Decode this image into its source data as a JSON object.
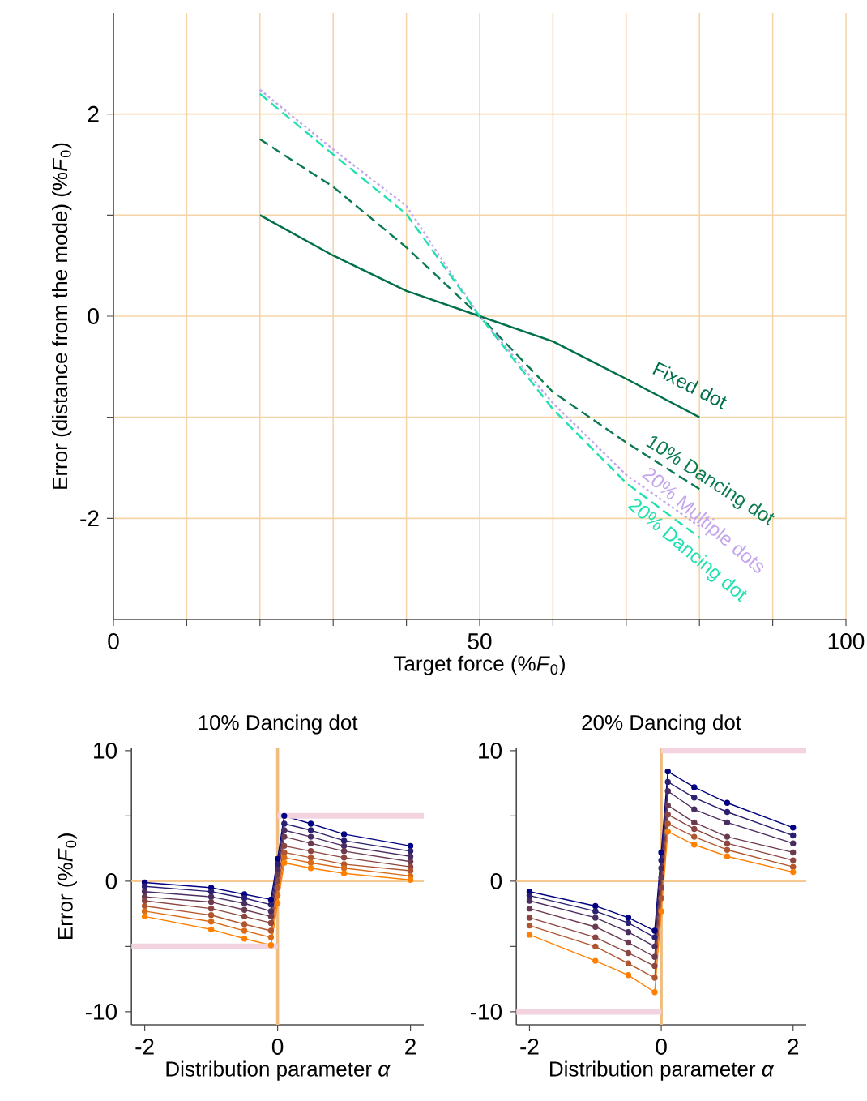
{
  "chart_data": [
    {
      "type": "line",
      "xlabel": "Target force (%*F*$_{0}$)",
      "ylabel": "Error (distance from the mode) (%*F*$_{0}$)",
      "x": [
        20,
        30,
        40,
        50,
        60,
        70,
        80
      ],
      "xlim": [
        0,
        100
      ],
      "ylim": [
        -3,
        3
      ],
      "xticks": [
        0,
        {
          "value": 10,
          "label": null
        },
        {
          "value": 20,
          "label": null
        },
        {
          "value": 30,
          "label": null
        },
        {
          "value": 40,
          "label": null
        },
        50,
        {
          "value": 60,
          "label": null
        },
        {
          "value": 70,
          "label": null
        },
        {
          "value": 80,
          "label": null
        },
        {
          "value": 90,
          "label": null
        },
        100
      ],
      "yticks": [
        -2,
        {
          "value": -1,
          "label": null
        },
        0,
        {
          "value": 1,
          "label": null
        },
        2
      ],
      "grid": true,
      "series": [
        {
          "name": "Fixed dot",
          "color": "#00704a",
          "line_style": "solid",
          "values": [
            1.0,
            0.6,
            0.25,
            0,
            -0.25,
            -0.62,
            -1.0
          ]
        },
        {
          "name": "10% Dancing dot",
          "color": "#0a7a50",
          "line_style": "dashed",
          "values": [
            1.75,
            1.28,
            0.68,
            0,
            -0.75,
            -1.25,
            -1.71
          ]
        },
        {
          "name": "20% Multiple dots",
          "color": "#c3a6ec",
          "line_style": "dotted",
          "values": [
            2.24,
            1.65,
            1.09,
            0,
            -0.86,
            -1.57,
            -2.08
          ]
        },
        {
          "name": "20% Dancing dot",
          "color": "#22e0b0",
          "line_style": "dashed",
          "values": [
            2.2,
            1.6,
            1.01,
            0,
            -0.92,
            -1.65,
            -2.19
          ]
        }
      ]
    },
    {
      "type": "line",
      "title": "10% Dancing dot",
      "xlabel": "Distribution parameter *α*",
      "ylabel": "Error (%*F*$_{0}$)",
      "x": [
        -2,
        -1,
        -0.5,
        -0.1,
        0,
        0.1,
        0.5,
        1,
        2
      ],
      "xlim": [
        -2.2,
        2.2
      ],
      "ylim": [
        -11,
        10.2
      ],
      "xticks": [
        -2,
        0,
        2
      ],
      "yticks": [
        -10,
        {
          "value": -5,
          "label": null
        },
        0,
        {
          "value": 5,
          "label": null
        },
        10
      ],
      "marker": "circle",
      "ref_lines": [
        {
          "axis": "y",
          "value": 0,
          "color": "#f5c98f"
        },
        {
          "axis": "x",
          "value": 0,
          "color": "#efbd80"
        }
      ],
      "series": [
        {
          "color": "#000080",
          "values": [
            -0.1,
            -0.5,
            -1.0,
            -1.4,
            1.7,
            5.0,
            4.4,
            3.6,
            2.7
          ]
        },
        {
          "color": "#2a1f70",
          "values": [
            -0.4,
            -0.8,
            -1.3,
            -1.8,
            1.3,
            4.4,
            3.9,
            3.1,
            2.3
          ]
        },
        {
          "color": "#4a2d60",
          "values": [
            -0.8,
            -1.2,
            -1.7,
            -2.3,
            0.9,
            3.9,
            3.4,
            2.7,
            1.9
          ]
        },
        {
          "color": "#6a3a50",
          "values": [
            -1.2,
            -1.6,
            -2.2,
            -2.7,
            0.5,
            3.4,
            2.9,
            2.3,
            1.5
          ]
        },
        {
          "color": "#8c4540",
          "values": [
            -1.5,
            -2.1,
            -2.7,
            -3.2,
            0,
            2.7,
            2.3,
            1.8,
            1.1
          ]
        },
        {
          "color": "#b05530",
          "values": [
            -1.9,
            -2.6,
            -3.3,
            -3.8,
            -0.5,
            2.2,
            1.8,
            1.3,
            0.8
          ]
        },
        {
          "color": "#d86a18",
          "values": [
            -2.3,
            -3.1,
            -3.8,
            -4.3,
            -1.1,
            1.8,
            1.4,
            1.0,
            0.4
          ]
        },
        {
          "color": "#ff8000",
          "values": [
            -2.7,
            -3.7,
            -4.4,
            -4.9,
            -1.7,
            1.4,
            1.0,
            0.6,
            0.1
          ]
        },
        {
          "color": "#f4d3e0",
          "marker": "none",
          "x": [
            -2.2,
            0
          ],
          "values": [
            -5,
            -5
          ]
        },
        {
          "color": "#f4d3e0",
          "marker": "none",
          "x": [
            0,
            2.2
          ],
          "values": [
            5,
            5
          ]
        }
      ]
    },
    {
      "type": "line",
      "title": "20% Dancing dot",
      "xlabel": "Distribution parameter *α*",
      "x": [
        -2,
        -1,
        -0.5,
        -0.1,
        0,
        0.1,
        0.5,
        1,
        2
      ],
      "xlim": [
        -2.2,
        2.2
      ],
      "ylim": [
        -11,
        10.2
      ],
      "xticks": [
        -2,
        0,
        2
      ],
      "yticks": [
        -10,
        {
          "value": -5,
          "label": null
        },
        0,
        {
          "value": 5,
          "label": null
        },
        10
      ],
      "marker": "circle",
      "ref_lines": [
        {
          "axis": "y",
          "value": 0,
          "color": "#f5c98f"
        },
        {
          "axis": "x",
          "value": 0,
          "color": "#efbd80"
        }
      ],
      "series": [
        {
          "color": "#000080",
          "values": [
            -0.8,
            -1.9,
            -2.8,
            -3.8,
            2.2,
            8.4,
            7.2,
            6.0,
            4.1
          ]
        },
        {
          "color": "#2a1f70",
          "values": [
            -1.1,
            -2.3,
            -3.2,
            -4.3,
            1.6,
            7.6,
            6.4,
            5.3,
            3.5
          ]
        },
        {
          "color": "#4a2d60",
          "values": [
            -1.5,
            -2.8,
            -3.9,
            -5.0,
            1.0,
            6.9,
            5.5,
            4.5,
            2.9
          ]
        },
        {
          "color": "#6a3a50",
          "values": [
            -2.1,
            -3.5,
            -4.7,
            -5.8,
            0.3,
            5.8,
            4.5,
            3.4,
            2.2
          ]
        },
        {
          "color": "#8c4540",
          "values": [
            -2.8,
            -4.3,
            -5.5,
            -6.5,
            -0.5,
            5.1,
            4.0,
            2.9,
            1.6
          ]
        },
        {
          "color": "#b05530",
          "values": [
            -3.4,
            -5.0,
            -6.3,
            -7.4,
            -1.3,
            4.4,
            3.4,
            2.4,
            1.1
          ]
        },
        {
          "color": "#ff8000",
          "values": [
            -4.1,
            -6.1,
            -7.2,
            -8.5,
            -2.3,
            3.8,
            2.8,
            1.9,
            0.7
          ]
        },
        {
          "color": "#f4d3e0",
          "marker": "none",
          "x": [
            -2.2,
            0
          ],
          "values": [
            -10,
            -10
          ]
        },
        {
          "color": "#f4d3e0",
          "marker": "none",
          "x": [
            0,
            2.2
          ],
          "values": [
            10,
            10
          ]
        }
      ]
    }
  ]
}
